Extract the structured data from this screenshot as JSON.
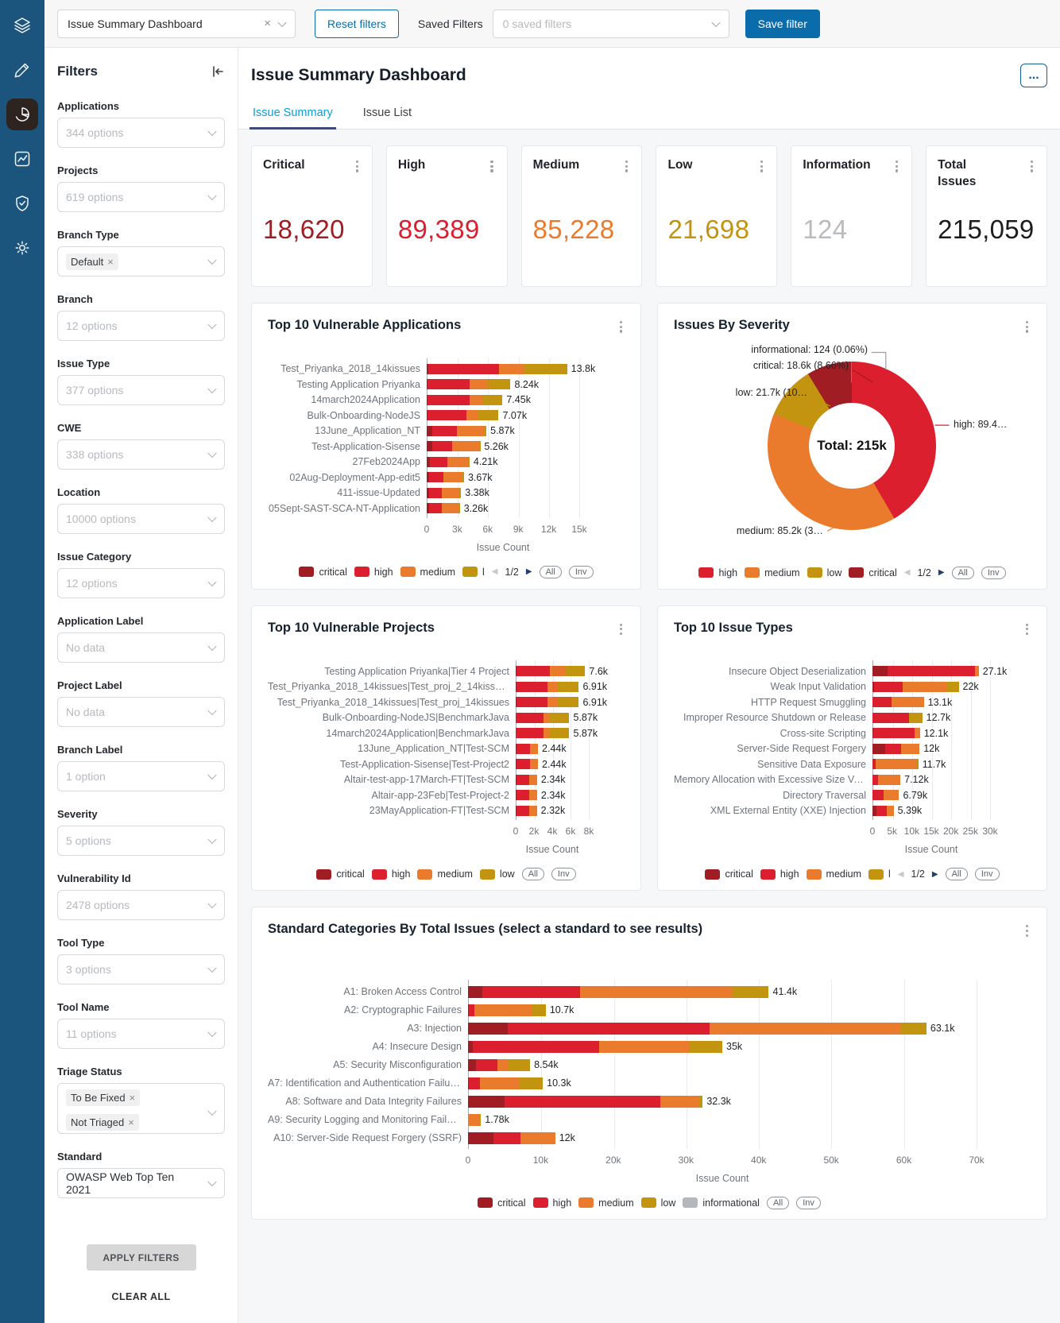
{
  "colors": {
    "critical": "#a01d24",
    "high": "#dc1f2e",
    "medium": "#ea7b2d",
    "low": "#c3940f",
    "informational": "#b5b8bb",
    "info_number": "#b9bcbf",
    "total_number": "#1b1d1f",
    "accent_blue": "#0a6cab",
    "tab_active_blue": "#0c9ed5",
    "tab_underline_navy": "#3f4a78",
    "leader_gray": "#9aa0a5"
  },
  "rail": {
    "icons": [
      "layers-icon",
      "pen-icon",
      "pie-chart-icon",
      "line-chart-icon",
      "shield-check-icon",
      "gear-icon"
    ],
    "active_icon": "pie-chart-icon"
  },
  "topbar": {
    "dashboard_select": {
      "value": "Issue Summary Dashboard"
    },
    "reset_filters_label": "Reset filters",
    "saved_filters_label": "Saved Filters",
    "saved_filters_select": {
      "placeholder": "0 saved filters"
    },
    "save_filter_label": "Save filter"
  },
  "filters": {
    "title": "Filters",
    "apply_label": "APPLY FILTERS",
    "clear_label": "CLEAR ALL",
    "fields": [
      {
        "label": "Applications",
        "placeholder": "344 options"
      },
      {
        "label": "Projects",
        "placeholder": "619 options"
      },
      {
        "label": "Branch Type",
        "chips": [
          "Default"
        ]
      },
      {
        "label": "Branch",
        "placeholder": "12 options"
      },
      {
        "label": "Issue Type",
        "placeholder": "377 options"
      },
      {
        "label": "CWE",
        "placeholder": "338 options"
      },
      {
        "label": "Location",
        "placeholder": "10000 options"
      },
      {
        "label": "Issue Category",
        "placeholder": "12 options"
      },
      {
        "label": "Application Label",
        "placeholder": "No data"
      },
      {
        "label": "Project Label",
        "placeholder": "No data"
      },
      {
        "label": "Branch Label",
        "placeholder": "1 option"
      },
      {
        "label": "Severity",
        "placeholder": "5 options"
      },
      {
        "label": "Vulnerability Id",
        "placeholder": "2478 options"
      },
      {
        "label": "Tool Type",
        "placeholder": "3 options"
      },
      {
        "label": "Tool Name",
        "placeholder": "11 options"
      },
      {
        "label": "Triage Status",
        "chips": [
          "To Be Fixed",
          "Not Triaged"
        ],
        "tall": true
      },
      {
        "label": "Standard",
        "value": "OWASP Web Top Ten 2021"
      }
    ]
  },
  "header": {
    "title": "Issue Summary Dashboard",
    "menu_label": "..."
  },
  "tabs": [
    {
      "label": "Issue Summary",
      "active": true
    },
    {
      "label": "Issue List",
      "active": false
    }
  ],
  "summary_cards": [
    {
      "label": "Critical",
      "value": "18,620",
      "color_key": "critical"
    },
    {
      "label": "High",
      "value": "89,389",
      "color_key": "high"
    },
    {
      "label": "Medium",
      "value": "85,228",
      "color_key": "medium"
    },
    {
      "label": "Low",
      "value": "21,698",
      "color_key": "low"
    },
    {
      "label": "Information",
      "value": "124",
      "color_key": "info_number"
    },
    {
      "label": "Total Issues",
      "value": "215,059",
      "color_key": "total_number"
    }
  ],
  "charts": {
    "apps": {
      "type": "bar",
      "title": "Top 10 Vulnerable Applications",
      "xlabel": "Issue Count",
      "xmax": 15,
      "xticks": [
        {
          "v": 0,
          "label": "0"
        },
        {
          "v": 3,
          "label": "3k"
        },
        {
          "v": 6,
          "label": "6k"
        },
        {
          "v": 9,
          "label": "9k"
        },
        {
          "v": 12,
          "label": "12k"
        },
        {
          "v": 15,
          "label": "15k"
        }
      ],
      "categories": [
        "Test_Priyanka_2018_14kissues",
        "Testing Application Priyanka",
        "14march2024Application",
        "Bulk-Onboarding-NodeJS",
        "13June_Application_NT",
        "Test-Application-Sisense",
        "27Feb2024App",
        "02Aug-Deployment-App-edit5",
        "411-issue-Updated",
        "05Sept-SAST-SCA-NT-Application"
      ],
      "series": [
        {
          "name": "critical",
          "values": [
            0.15,
            0.05,
            0.05,
            0.05,
            0.55,
            0.55,
            0.3,
            0.25,
            0.2,
            0.2
          ]
        },
        {
          "name": "high",
          "values": [
            6.95,
            4.15,
            4.15,
            3.85,
            2.45,
            1.95,
            1.7,
            1.4,
            1.3,
            1.25
          ]
        },
        {
          "name": "medium",
          "values": [
            2.55,
            1.82,
            1.25,
            1.1,
            2.62,
            2.7,
            2.1,
            1.87,
            1.63,
            1.71
          ]
        },
        {
          "name": "low",
          "values": [
            4.15,
            2.22,
            2.0,
            2.07,
            0.25,
            0.06,
            0.11,
            0.15,
            0.25,
            0.1
          ]
        }
      ],
      "totals": [
        "13.8k",
        "8.24k",
        "7.45k",
        "7.07k",
        "5.87k",
        "5.26k",
        "4.21k",
        "3.67k",
        "3.38k",
        "3.26k"
      ],
      "legend": {
        "items": [
          {
            "key": "critical",
            "label": "critical"
          },
          {
            "key": "high",
            "label": "high"
          },
          {
            "key": "medium",
            "label": "medium"
          },
          {
            "key": "low",
            "label": "l"
          }
        ],
        "pager": "1/2",
        "buttons": [
          "All",
          "Inv"
        ]
      }
    },
    "severity_donut": {
      "type": "pie",
      "title": "Issues By Severity",
      "center_label": "Total: 215k",
      "slices": [
        {
          "key": "high",
          "pct": 41.57,
          "label": "high: 89.4…"
        },
        {
          "key": "medium",
          "pct": 39.63,
          "label": "medium: 85.2k (3…"
        },
        {
          "key": "low",
          "pct": 10.09,
          "label": "low: 21.7k (10…"
        },
        {
          "key": "critical",
          "pct": 8.66,
          "label": "critical: 18.6k (8.66%)"
        },
        {
          "key": "informational",
          "pct": 0.06,
          "label": "informational: 124 (0.06%)"
        }
      ],
      "legend": {
        "items": [
          {
            "key": "high",
            "label": "high"
          },
          {
            "key": "medium",
            "label": "medium"
          },
          {
            "key": "low",
            "label": "low"
          },
          {
            "key": "critical",
            "label": "critical"
          }
        ],
        "pager": "1/2",
        "buttons": [
          "All",
          "Inv"
        ]
      }
    },
    "projects": {
      "type": "bar",
      "title": "Top 10 Vulnerable Projects",
      "xlabel": "Issue Count",
      "xmax": 8,
      "xticks": [
        {
          "v": 0,
          "label": "0"
        },
        {
          "v": 2,
          "label": "2k"
        },
        {
          "v": 4,
          "label": "4k"
        },
        {
          "v": 6,
          "label": "6k"
        },
        {
          "v": 8,
          "label": "8k"
        }
      ],
      "categories": [
        "Testing Application Priyanka|Tier 4 Project",
        "Test_Priyanka_2018_14kissues|Test_proj_2_14kissues",
        "Test_Priyanka_2018_14kissues|Test_proj_14kissues",
        "Bulk-Onboarding-NodeJS|BenchmarkJava",
        "14march2024Application|BenchmarkJava",
        "13June_Application_NT|Test-SCM",
        "Test-Application-Sisense|Test-Project2",
        "Altair-test-app-17March-FT|Test-SCM",
        "Altair-app-23Feb|Test-Project-2",
        "23MayApplication-FT|Test-SCM"
      ],
      "series": [
        {
          "name": "critical",
          "values": [
            0.05,
            0.05,
            0.05,
            0.03,
            0.03,
            0.08,
            0.08,
            0.08,
            0.08,
            0.08
          ]
        },
        {
          "name": "high",
          "values": [
            3.7,
            3.4,
            3.4,
            3.05,
            3.05,
            1.5,
            1.5,
            1.4,
            1.4,
            1.38
          ]
        },
        {
          "name": "medium",
          "values": [
            1.6,
            1.2,
            1.2,
            0.64,
            0.64,
            0.86,
            0.86,
            0.86,
            0.86,
            0.86
          ]
        },
        {
          "name": "low",
          "values": [
            2.25,
            2.26,
            2.26,
            2.15,
            2.15,
            0,
            0,
            0,
            0,
            0
          ]
        }
      ],
      "totals": [
        "7.6k",
        "6.91k",
        "6.91k",
        "5.87k",
        "5.87k",
        "2.44k",
        "2.44k",
        "2.34k",
        "2.34k",
        "2.32k"
      ],
      "legend": {
        "items": [
          {
            "key": "critical",
            "label": "critical"
          },
          {
            "key": "high",
            "label": "high"
          },
          {
            "key": "medium",
            "label": "medium"
          },
          {
            "key": "low",
            "label": "low"
          }
        ],
        "pager": null,
        "buttons": [
          "All",
          "Inv"
        ]
      }
    },
    "issue_types": {
      "type": "bar",
      "title": "Top 10 Issue Types",
      "xlabel": "Issue Count",
      "xmax": 30,
      "xticks": [
        {
          "v": 0,
          "label": "0"
        },
        {
          "v": 5,
          "label": "5k"
        },
        {
          "v": 10,
          "label": "10k"
        },
        {
          "v": 15,
          "label": "15k"
        },
        {
          "v": 20,
          "label": "20k"
        },
        {
          "v": 25,
          "label": "25k"
        },
        {
          "v": 30,
          "label": "30k"
        }
      ],
      "categories": [
        "Insecure Object Deserialization",
        "Weak Input Validation",
        "HTTP Request Smuggling",
        "Improper Resource Shutdown or Release",
        "Cross-site Scripting",
        "Server-Side Request Forgery",
        "Sensitive Data Exposure",
        "Memory Allocation with Excessive Size Value",
        "Directory Traversal",
        "XML External Entity (XXE) Injection"
      ],
      "series": [
        {
          "name": "critical",
          "values": [
            3.8,
            0.4,
            0.1,
            0.1,
            0.2,
            3.3,
            0.1,
            0.1,
            0.1,
            1.0
          ]
        },
        {
          "name": "high",
          "values": [
            22.3,
            7.3,
            4.8,
            9.2,
            10.6,
            4.0,
            0.7,
            1.3,
            2.7,
            2.6
          ]
        },
        {
          "name": "medium",
          "values": [
            1.0,
            11.3,
            8.2,
            0,
            1.3,
            4.7,
            10.5,
            5.72,
            3.99,
            1.79
          ]
        },
        {
          "name": "low",
          "values": [
            0,
            3.0,
            0,
            3.4,
            0,
            0,
            0.4,
            0,
            0,
            0
          ]
        }
      ],
      "totals": [
        "27.1k",
        "22k",
        "13.1k",
        "12.7k",
        "12.1k",
        "12k",
        "11.7k",
        "7.12k",
        "6.79k",
        "5.39k"
      ],
      "legend": {
        "items": [
          {
            "key": "critical",
            "label": "critical"
          },
          {
            "key": "high",
            "label": "high"
          },
          {
            "key": "medium",
            "label": "medium"
          },
          {
            "key": "low",
            "label": "l"
          }
        ],
        "pager": "1/2",
        "buttons": [
          "All",
          "Inv"
        ]
      }
    },
    "standards": {
      "type": "bar",
      "title": "Standard Categories By Total Issues (select a standard to see results)",
      "xlabel": "Issue Count",
      "xmax": 70,
      "xticks": [
        {
          "v": 0,
          "label": "0"
        },
        {
          "v": 10,
          "label": "10k"
        },
        {
          "v": 20,
          "label": "20k"
        },
        {
          "v": 30,
          "label": "30k"
        },
        {
          "v": 40,
          "label": "40k"
        },
        {
          "v": 50,
          "label": "50k"
        },
        {
          "v": 60,
          "label": "60k"
        },
        {
          "v": 70,
          "label": "70k"
        }
      ],
      "categories": [
        "A1: Broken Access Control",
        "A2: Cryptographic Failures",
        "A3: Injection",
        "A4: Insecure Design",
        "A5: Security Misconfiguration",
        "A7: Identification and Authentication Failures",
        "A8: Software and Data Integrity Failures",
        "A9: Security Logging and Monitoring Failures",
        "A10: Server-Side Request Forgery (SSRF)"
      ],
      "series": [
        {
          "name": "critical",
          "values": [
            2.0,
            0.15,
            5.5,
            0.7,
            1.1,
            0.15,
            5.0,
            0,
            3.5
          ]
        },
        {
          "name": "high",
          "values": [
            13.4,
            0.7,
            27.8,
            17.3,
            3.0,
            1.5,
            21.5,
            0,
            3.7
          ]
        },
        {
          "name": "medium",
          "values": [
            21.0,
            8.0,
            26.3,
            12.5,
            1.5,
            5.3,
            5.2,
            1.6,
            4.8
          ]
        },
        {
          "name": "low",
          "values": [
            5.0,
            1.85,
            3.5,
            4.5,
            2.94,
            3.35,
            0.6,
            0.18,
            0
          ]
        },
        {
          "name": "informational",
          "values": [
            0,
            0,
            0,
            0,
            0,
            0,
            0,
            0,
            0
          ]
        }
      ],
      "totals": [
        "41.4k",
        "10.7k",
        "63.1k",
        "35k",
        "8.54k",
        "10.3k",
        "32.3k",
        "1.78k",
        "12k"
      ],
      "legend": {
        "items": [
          {
            "key": "critical",
            "label": "critical"
          },
          {
            "key": "high",
            "label": "high"
          },
          {
            "key": "medium",
            "label": "medium"
          },
          {
            "key": "low",
            "label": "low"
          },
          {
            "key": "informational",
            "label": "informational"
          }
        ],
        "pager": null,
        "buttons": [
          "All",
          "Inv"
        ]
      }
    }
  }
}
